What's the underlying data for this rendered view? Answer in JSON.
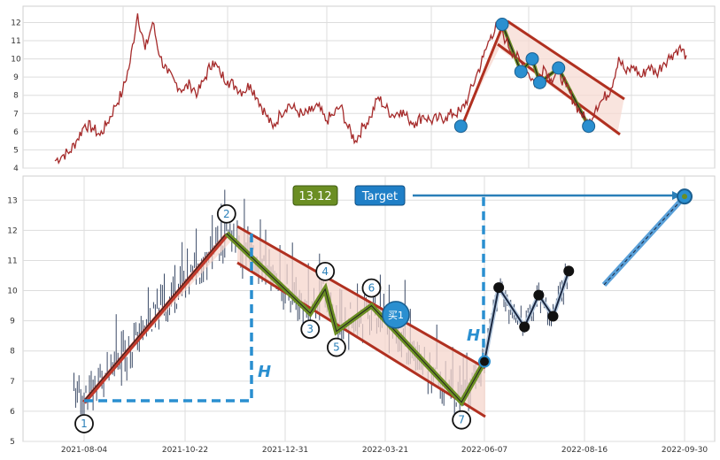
{
  "chart_data": [
    {
      "type": "line",
      "title": "",
      "ylim": [
        4,
        12.8
      ],
      "yticks": [
        4,
        5,
        6,
        7,
        8,
        9,
        10,
        11,
        12
      ],
      "series": [
        {
          "values": [
            4.4,
            4.7,
            4.9,
            5.6,
            6.4,
            6.2,
            5.8,
            6.5,
            7.4,
            8.2,
            9.8,
            12.5,
            10.5,
            12.0,
            10.1,
            9.2,
            8.7,
            8.3,
            8.6,
            8.1,
            9.0,
            9.9,
            9.2,
            8.8,
            8.5,
            8.2,
            8.6,
            7.8,
            7.0,
            6.2,
            7.0,
            7.5,
            7.2,
            6.9,
            7.1,
            7.4,
            6.6,
            6.9,
            7.4,
            6.2,
            5.5,
            6.3,
            6.8,
            7.9,
            7.3,
            6.9,
            7.2,
            6.7,
            6.5,
            6.9,
            6.6,
            6.7,
            6.8,
            7.0,
            7.1,
            7.9,
            9.0,
            10.1,
            11.3,
            11.9,
            11.0,
            10.3,
            9.8,
            9.2,
            8.6,
            9.6,
            8.9,
            9.3,
            8.5,
            7.7,
            7.0,
            6.4,
            7.4,
            7.8,
            8.4,
            10.1,
            9.2,
            9.6,
            9.0,
            9.6,
            9.2,
            9.8,
            10.2,
            10.6,
            10.2
          ]
        }
      ],
      "markers": [
        {
          "x": 54,
          "y": 6.3
        },
        {
          "x": 59.5,
          "y": 11.9
        },
        {
          "x": 62,
          "y": 9.3
        },
        {
          "x": 63.5,
          "y": 10.0
        },
        {
          "x": 64.5,
          "y": 8.7
        },
        {
          "x": 67,
          "y": 9.5
        },
        {
          "x": 71,
          "y": 6.3
        }
      ],
      "xmax": 84
    },
    {
      "type": "line",
      "title": "",
      "x": [
        "2021-07-27",
        "2021-08-04",
        "2021-10-22",
        "2021-11-20",
        "2021-12-31",
        "2022-01-20",
        "2022-02-01",
        "2022-02-10",
        "2022-03-10",
        "2022-03-21",
        "2022-05-20",
        "2022-06-07",
        "2022-06-17",
        "2022-07-05",
        "2022-07-15",
        "2022-07-25",
        "2022-08-05",
        "2022-08-16",
        "2022-09-30"
      ],
      "xticks": [
        "2021-08-04",
        "2021-10-22",
        "2021-12-31",
        "2022-03-21",
        "2022-06-07",
        "2022-08-16",
        "2022-09-30"
      ],
      "ylim": [
        5,
        13.8
      ],
      "yticks": [
        5,
        6,
        7,
        8,
        9,
        10,
        11,
        12,
        13
      ],
      "wave_points": [
        {
          "label": "1",
          "date": "2021-08-04",
          "value": 6.35
        },
        {
          "label": "2",
          "date": "2021-11-20",
          "value": 11.9
        },
        {
          "label": "3",
          "date": "2022-01-20",
          "value": 9.25
        },
        {
          "label": "4",
          "date": "2022-02-01",
          "value": 10.05
        },
        {
          "label": "5",
          "date": "2022-02-10",
          "value": 8.65
        },
        {
          "label": "6",
          "date": "2022-03-10",
          "value": 9.5
        },
        {
          "label": "7",
          "date": "2022-05-20",
          "value": 6.3
        }
      ],
      "breakout": {
        "date": "2022-06-07",
        "value": 7.65
      },
      "projection_path": [
        {
          "date": "2022-06-07",
          "value": 7.65
        },
        {
          "date": "2022-06-17",
          "value": 10.1
        },
        {
          "date": "2022-07-05",
          "value": 8.8
        },
        {
          "date": "2022-07-15",
          "value": 9.85
        },
        {
          "date": "2022-07-25",
          "value": 9.15
        },
        {
          "date": "2022-08-05",
          "value": 10.65
        }
      ],
      "target": {
        "date": "2022-09-30",
        "value": 13.12
      },
      "annotations": {
        "price_box": "13.12",
        "target_box": "Target",
        "buy_label": "买1",
        "height_label": "H"
      }
    }
  ]
}
